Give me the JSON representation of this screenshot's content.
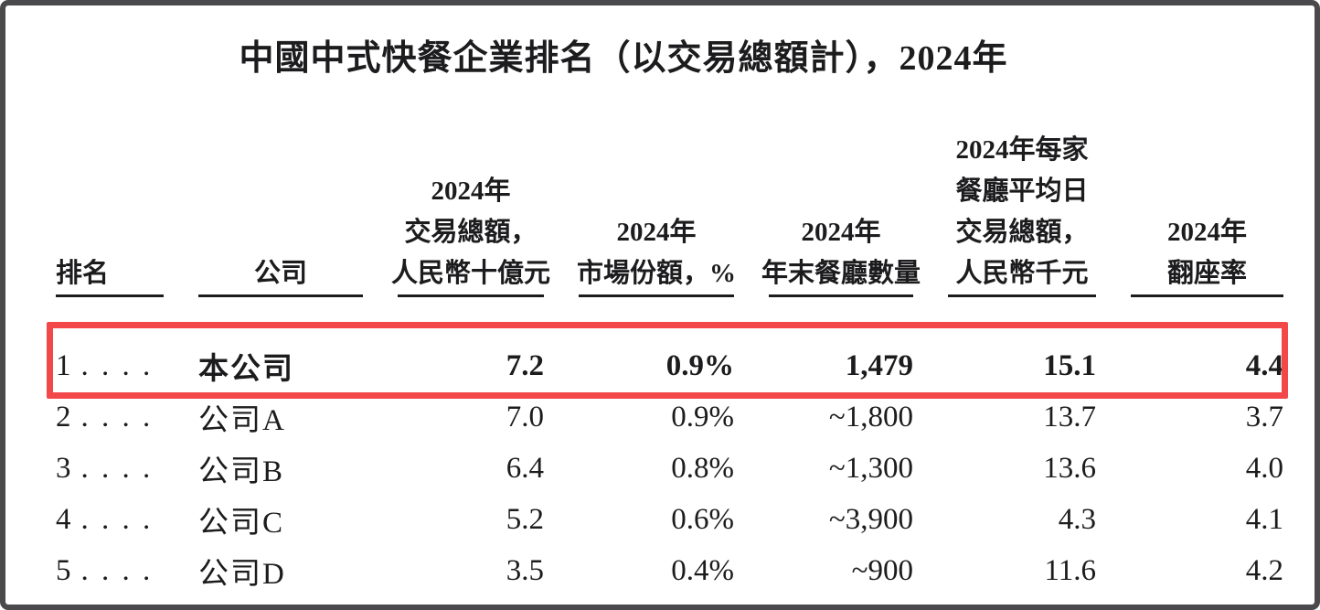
{
  "title": "中國中式快餐企業排名（以交易總額計），2024年",
  "highlight_color": "#f2484a",
  "table": {
    "columns": [
      {
        "key": "rank",
        "label": "排名"
      },
      {
        "key": "company",
        "label": "公司"
      },
      {
        "key": "gmv",
        "label": "2024年\n交易總額，\n人民幣十億元"
      },
      {
        "key": "market_share",
        "label": "2024年\n市場份額，%"
      },
      {
        "key": "restaurant_count",
        "label": "2024年\n年末餐廳數量"
      },
      {
        "key": "avg_daily_gmv",
        "label": "2024年每家\n餐廳平均日\n交易總額，\n人民幣千元"
      },
      {
        "key": "turnover_rate",
        "label": "2024年\n翻座率"
      }
    ],
    "rows": [
      {
        "rank": "1",
        "dots": ". . . .",
        "company": "本公司",
        "gmv": "7.2",
        "market_share": "0.9%",
        "restaurant_count": "1,479",
        "avg_daily_gmv": "15.1",
        "turnover_rate": "4.4",
        "highlighted": true
      },
      {
        "rank": "2",
        "dots": ". . . .",
        "company": "公司A",
        "gmv": "7.0",
        "market_share": "0.9%",
        "restaurant_count": "~1,800",
        "avg_daily_gmv": "13.7",
        "turnover_rate": "3.7",
        "highlighted": false
      },
      {
        "rank": "3",
        "dots": ". . . .",
        "company": "公司B",
        "gmv": "6.4",
        "market_share": "0.8%",
        "restaurant_count": "~1,300",
        "avg_daily_gmv": "13.6",
        "turnover_rate": "4.0",
        "highlighted": false
      },
      {
        "rank": "4",
        "dots": ". . . .",
        "company": "公司C",
        "gmv": "5.2",
        "market_share": "0.6%",
        "restaurant_count": "~3,900",
        "avg_daily_gmv": "4.3",
        "turnover_rate": "4.1",
        "highlighted": false
      },
      {
        "rank": "5",
        "dots": ". . . .",
        "company": "公司D",
        "gmv": "3.5",
        "market_share": "0.4%",
        "restaurant_count": "~900",
        "avg_daily_gmv": "11.6",
        "turnover_rate": "4.2",
        "highlighted": false
      }
    ]
  }
}
